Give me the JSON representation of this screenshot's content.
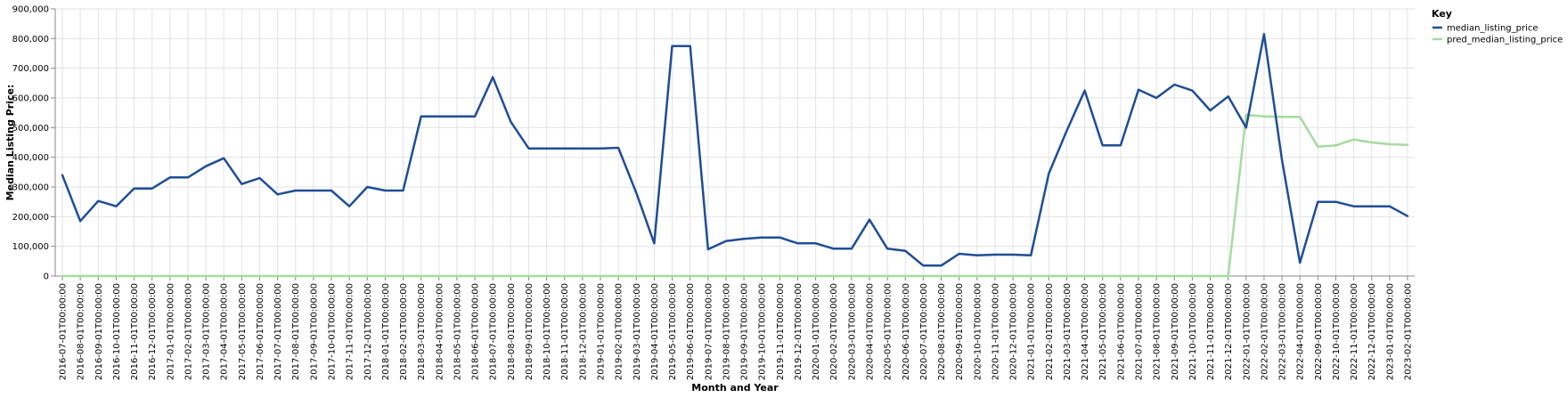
{
  "chart_data": {
    "type": "line",
    "xlabel": "Month and Year",
    "ylabel": "Median Listing Price:",
    "ylim": [
      0,
      900000
    ],
    "yticks": [
      0,
      100000,
      200000,
      300000,
      400000,
      500000,
      600000,
      700000,
      800000,
      900000
    ],
    "ytick_labels": [
      "0",
      "100,000",
      "200,000",
      "300,000",
      "400,000",
      "500,000",
      "600,000",
      "700,000",
      "800,000",
      "900,000"
    ],
    "grid": true,
    "legend": {
      "title": "Key",
      "placement": "top-right"
    },
    "categories": [
      "2016-07-01T00:00:00",
      "2016-08-01T00:00:00",
      "2016-09-01T00:00:00",
      "2016-10-01T00:00:00",
      "2016-11-01T00:00:00",
      "2016-12-01T00:00:00",
      "2017-01-01T00:00:00",
      "2017-02-01T00:00:00",
      "2017-03-01T00:00:00",
      "2017-04-01T00:00:00",
      "2017-05-01T00:00:00",
      "2017-06-01T00:00:00",
      "2017-07-01T00:00:00",
      "2017-08-01T00:00:00",
      "2017-09-01T00:00:00",
      "2017-10-01T00:00:00",
      "2017-11-01T00:00:00",
      "2017-12-01T00:00:00",
      "2018-01-01T00:00:00",
      "2018-02-01T00:00:00",
      "2018-03-01T00:00:00",
      "2018-04-01T00:00:00",
      "2018-05-01T00:00:00",
      "2018-06-01T00:00:00",
      "2018-07-01T00:00:00",
      "2018-08-01T00:00:00",
      "2018-09-01T00:00:00",
      "2018-10-01T00:00:00",
      "2018-11-01T00:00:00",
      "2018-12-01T00:00:00",
      "2019-01-01T00:00:00",
      "2019-02-01T00:00:00",
      "2019-03-01T00:00:00",
      "2019-04-01T00:00:00",
      "2019-05-01T00:00:00",
      "2019-06-01T00:00:00",
      "2019-07-01T00:00:00",
      "2019-08-01T00:00:00",
      "2019-09-01T00:00:00",
      "2019-10-01T00:00:00",
      "2019-11-01T00:00:00",
      "2019-12-01T00:00:00",
      "2020-01-01T00:00:00",
      "2020-02-01T00:00:00",
      "2020-03-01T00:00:00",
      "2020-04-01T00:00:00",
      "2020-05-01T00:00:00",
      "2020-06-01T00:00:00",
      "2020-07-01T00:00:00",
      "2020-08-01T00:00:00",
      "2020-09-01T00:00:00",
      "2020-10-01T00:00:00",
      "2020-11-01T00:00:00",
      "2020-12-01T00:00:00",
      "2021-01-01T00:00:00",
      "2021-02-01T00:00:00",
      "2021-03-01T00:00:00",
      "2021-04-01T00:00:00",
      "2021-05-01T00:00:00",
      "2021-06-01T00:00:00",
      "2021-07-01T00:00:00",
      "2021-08-01T00:00:00",
      "2021-09-01T00:00:00",
      "2021-10-01T00:00:00",
      "2021-11-01T00:00:00",
      "2021-12-01T00:00:00",
      "2022-01-01T00:00:00",
      "2022-02-01T00:00:00",
      "2022-03-01T00:00:00",
      "2022-04-01T00:00:00",
      "2022-09-01T00:00:00",
      "2022-10-01T00:00:00",
      "2022-11-01T00:00:00",
      "2022-12-01T00:00:00",
      "2023-01-01T00:00:00",
      "2023-02-01T00:00:00"
    ],
    "series": [
      {
        "name": "median_listing_price",
        "color": "#1f4e96",
        "values": [
          340000,
          185000,
          253000,
          235000,
          295000,
          295000,
          332000,
          332000,
          370000,
          397000,
          310000,
          330000,
          275000,
          288000,
          288000,
          288000,
          235000,
          300000,
          288000,
          288000,
          538000,
          538000,
          538000,
          538000,
          670000,
          520000,
          430000,
          430000,
          430000,
          430000,
          430000,
          432000,
          280000,
          110000,
          775000,
          775000,
          90000,
          118000,
          125000,
          130000,
          130000,
          110000,
          110000,
          92000,
          92000,
          190000,
          92000,
          85000,
          35000,
          35000,
          75000,
          70000,
          72000,
          72000,
          70000,
          345000,
          490000,
          625000,
          440000,
          440000,
          628000,
          600000,
          645000,
          625000,
          558000,
          605000,
          500000,
          815000,
          390000,
          45000,
          250000,
          250000,
          235000,
          235000,
          235000,
          202000
        ]
      },
      {
        "name": "pred_median_listing_price",
        "color": "#a6dba0",
        "values": [
          0,
          0,
          0,
          0,
          0,
          0,
          0,
          0,
          0,
          0,
          0,
          0,
          0,
          0,
          0,
          0,
          0,
          0,
          0,
          0,
          0,
          0,
          0,
          0,
          0,
          0,
          0,
          0,
          0,
          0,
          0,
          0,
          0,
          0,
          0,
          0,
          0,
          0,
          0,
          0,
          0,
          0,
          0,
          0,
          0,
          0,
          0,
          0,
          0,
          0,
          0,
          0,
          0,
          0,
          0,
          0,
          0,
          0,
          0,
          0,
          0,
          0,
          0,
          0,
          0,
          0,
          543000,
          538000,
          536000,
          536000,
          436000,
          440000,
          460000,
          450000,
          444000,
          442000
        ]
      }
    ]
  }
}
